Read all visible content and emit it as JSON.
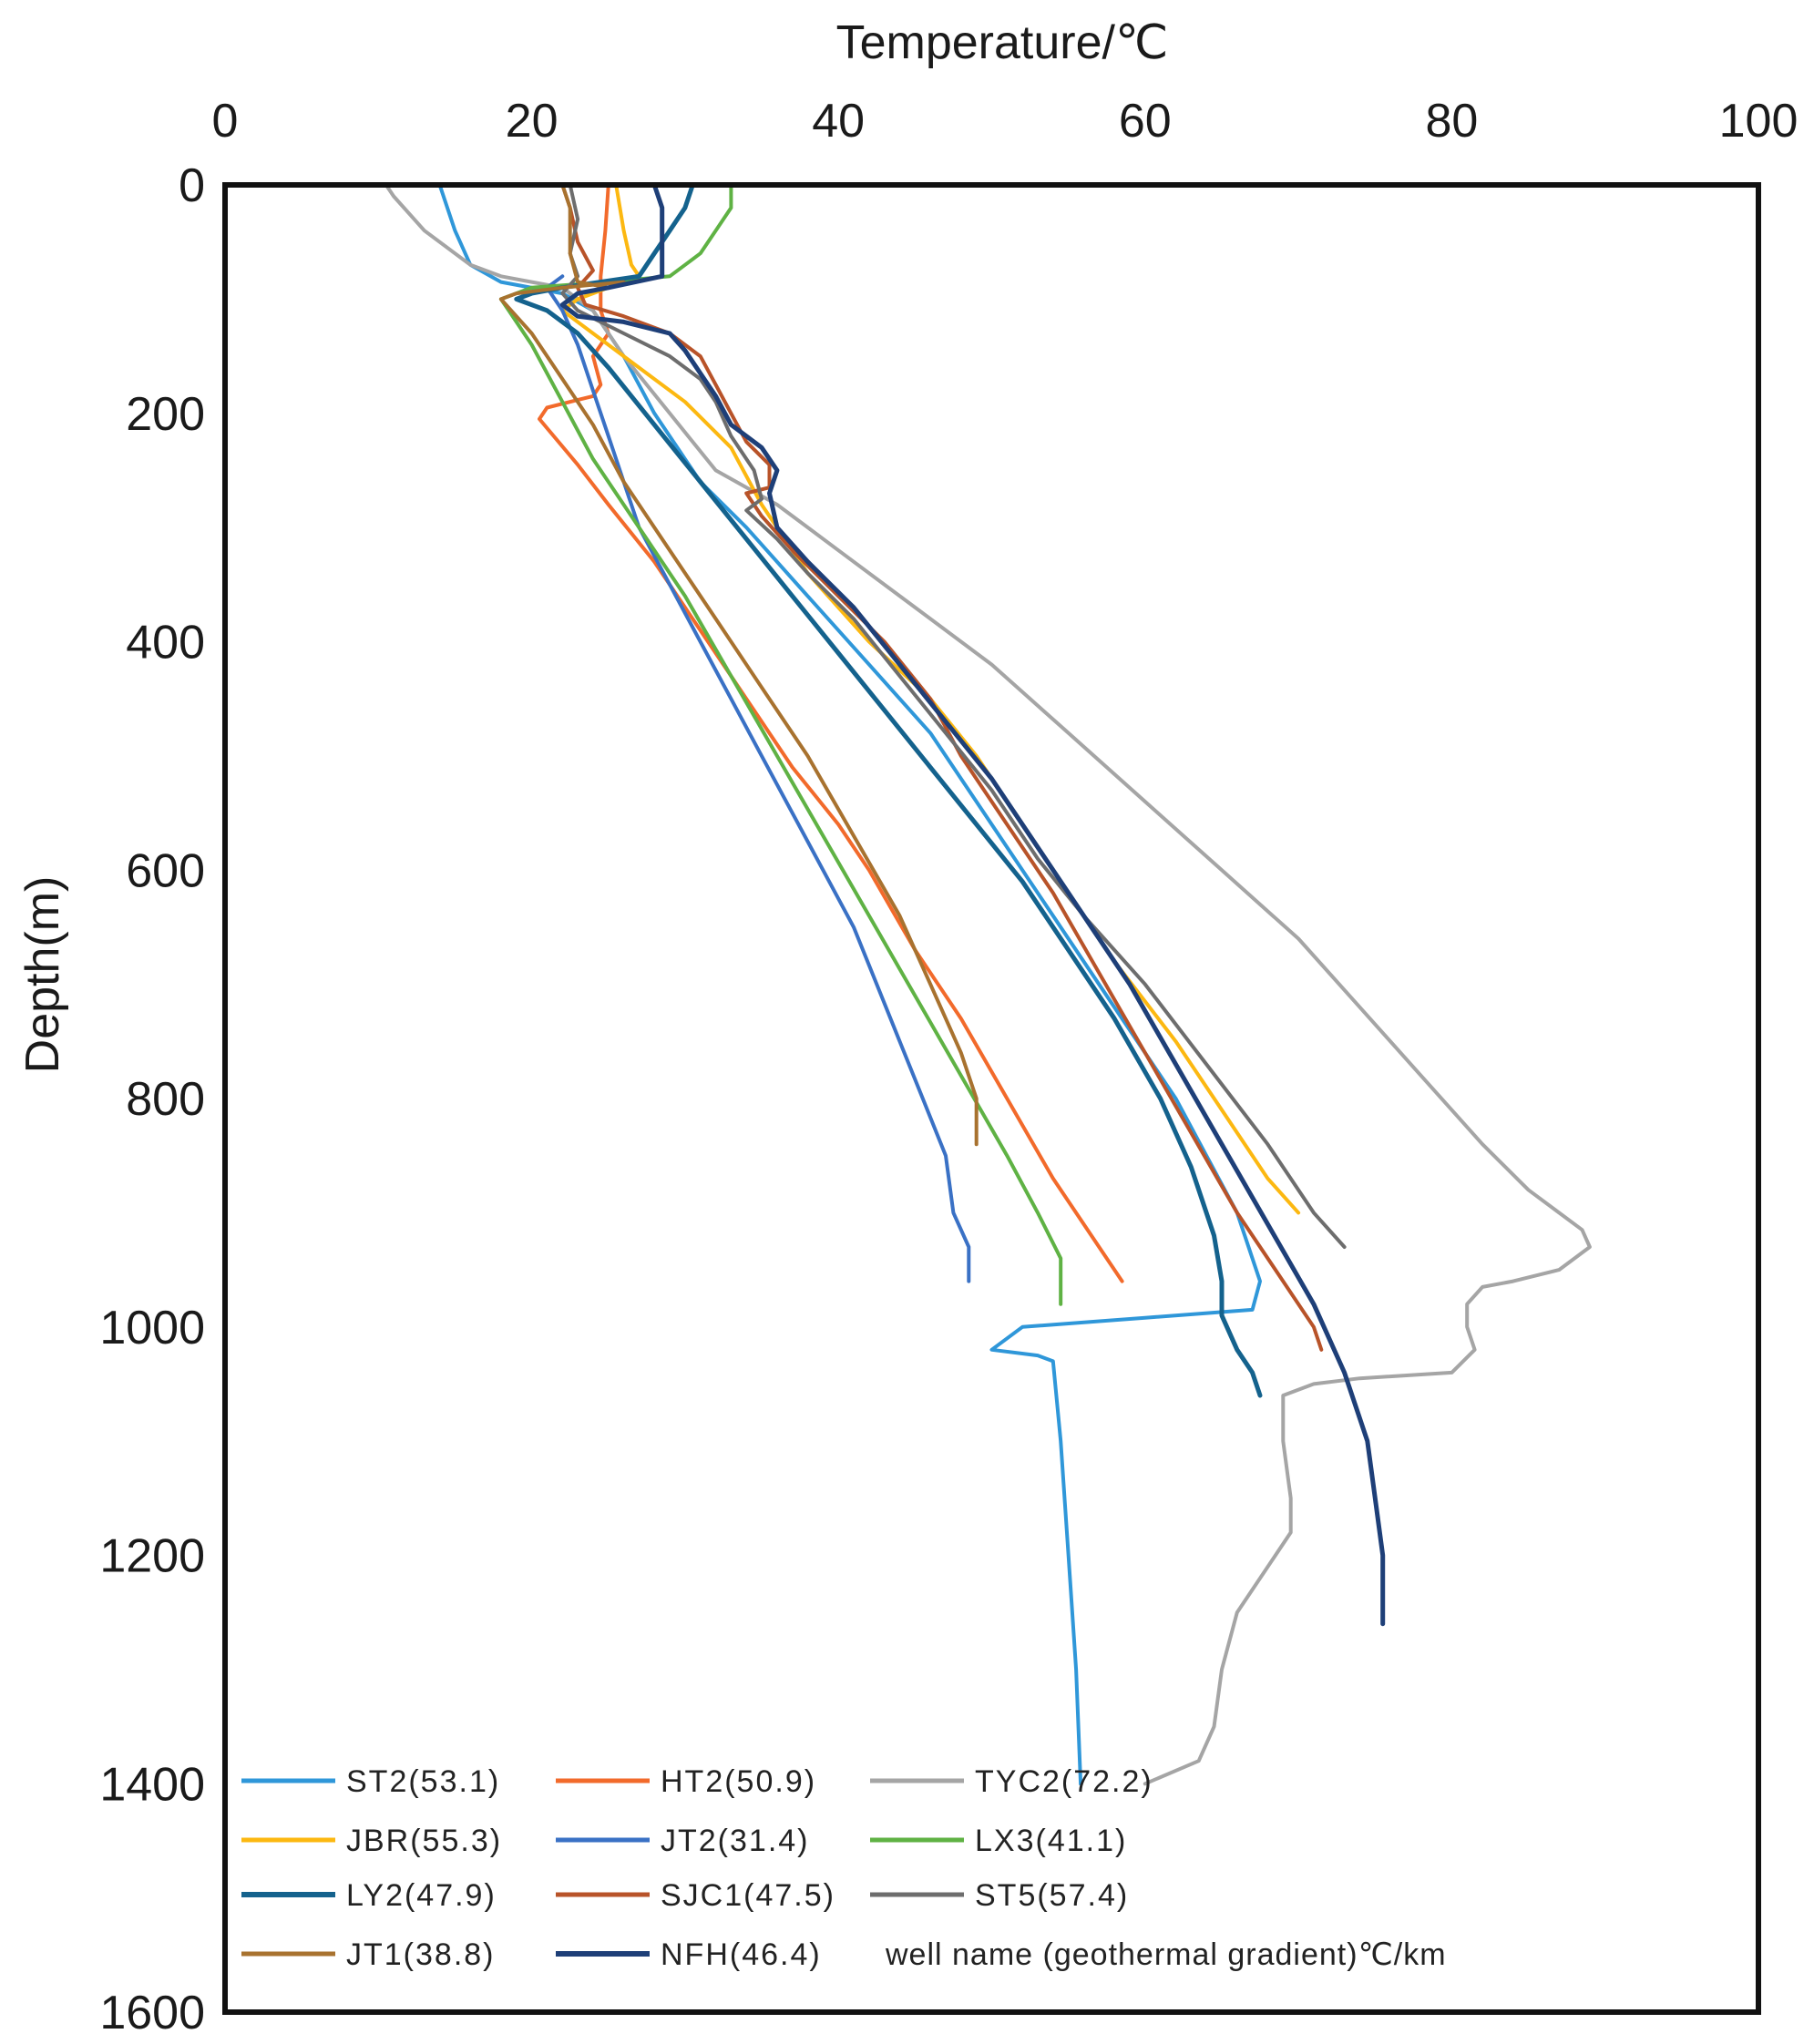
{
  "chart_data": {
    "type": "line",
    "title": "",
    "xlabel": "Temperature/℃",
    "ylabel": "Depth(m)",
    "xlim": [
      0,
      100
    ],
    "ylim": [
      0,
      1600
    ],
    "y_inverted": true,
    "x_axis_position": "top",
    "x_ticks": [
      "0",
      "20",
      "40",
      "60",
      "80",
      "100"
    ],
    "y_ticks": [
      "0",
      "200",
      "400",
      "600",
      "800",
      "1000",
      "1200",
      "1400",
      "1600"
    ],
    "legend_note": "well name (geothermal gradient)℃/km",
    "legend_position": "bottom-left",
    "series": [
      {
        "name": "ST2(53.1)",
        "color": "#2f97d9",
        "points": [
          [
            14,
            0
          ],
          [
            15,
            40
          ],
          [
            16,
            70
          ],
          [
            18,
            85
          ],
          [
            22,
            95
          ],
          [
            24,
            110
          ],
          [
            26,
            150
          ],
          [
            28,
            200
          ],
          [
            31,
            260
          ],
          [
            34,
            300
          ],
          [
            38,
            360
          ],
          [
            42,
            420
          ],
          [
            46,
            480
          ],
          [
            50,
            560
          ],
          [
            54,
            640
          ],
          [
            58,
            720
          ],
          [
            62,
            800
          ],
          [
            64,
            850
          ],
          [
            66,
            900
          ],
          [
            67.5,
            960
          ],
          [
            67,
            985
          ],
          [
            60,
            992
          ],
          [
            52,
            1000
          ],
          [
            50,
            1020
          ],
          [
            53,
            1025
          ],
          [
            54,
            1030
          ],
          [
            54.5,
            1100
          ],
          [
            55,
            1200
          ],
          [
            55.5,
            1300
          ],
          [
            55.8,
            1400
          ]
        ]
      },
      {
        "name": "HT2(50.9)",
        "color": "#f26a2b",
        "points": [
          [
            25,
            0
          ],
          [
            24.8,
            40
          ],
          [
            24.5,
            80
          ],
          [
            24.5,
            110
          ],
          [
            25,
            130
          ],
          [
            24,
            150
          ],
          [
            24.5,
            175
          ],
          [
            24,
            185
          ],
          [
            21,
            195
          ],
          [
            20.5,
            205
          ],
          [
            23,
            245
          ],
          [
            25,
            280
          ],
          [
            28,
            330
          ],
          [
            31,
            390
          ],
          [
            34,
            450
          ],
          [
            37,
            510
          ],
          [
            40,
            560
          ],
          [
            42,
            600
          ],
          [
            45,
            670
          ],
          [
            48,
            730
          ],
          [
            51,
            800
          ],
          [
            54,
            870
          ],
          [
            57,
            930
          ],
          [
            58.5,
            960
          ]
        ]
      },
      {
        "name": "TYC2(72.2)",
        "color": "#a5a5a5",
        "points": [
          [
            10.5,
            0
          ],
          [
            11,
            10
          ],
          [
            13,
            40
          ],
          [
            16,
            70
          ],
          [
            18,
            80
          ],
          [
            20,
            85
          ],
          [
            22,
            90
          ],
          [
            24,
            110
          ],
          [
            26,
            150
          ],
          [
            29,
            200
          ],
          [
            32,
            250
          ],
          [
            36,
            280
          ],
          [
            40,
            320
          ],
          [
            45,
            370
          ],
          [
            50,
            420
          ],
          [
            55,
            480
          ],
          [
            60,
            540
          ],
          [
            65,
            600
          ],
          [
            70,
            660
          ],
          [
            74,
            720
          ],
          [
            78,
            780
          ],
          [
            82,
            840
          ],
          [
            85,
            880
          ],
          [
            87,
            900
          ],
          [
            88.5,
            915
          ],
          [
            89,
            930
          ],
          [
            87,
            950
          ],
          [
            84,
            960
          ],
          [
            82,
            965
          ],
          [
            81,
            980
          ],
          [
            81,
            1000
          ],
          [
            81.5,
            1020
          ],
          [
            80,
            1040
          ],
          [
            74,
            1045
          ],
          [
            71,
            1050
          ],
          [
            69,
            1060
          ],
          [
            69,
            1080
          ],
          [
            69,
            1100
          ],
          [
            69.5,
            1150
          ],
          [
            69.5,
            1180
          ],
          [
            68.5,
            1200
          ],
          [
            66,
            1250
          ],
          [
            65,
            1300
          ],
          [
            64.5,
            1350
          ],
          [
            63.5,
            1380
          ],
          [
            60,
            1400
          ]
        ]
      },
      {
        "name": "JBR(55.3)",
        "color": "#fcb811",
        "points": [
          [
            25.5,
            0
          ],
          [
            26,
            40
          ],
          [
            26.5,
            70
          ],
          [
            27,
            80
          ],
          [
            25,
            90
          ],
          [
            23,
            100
          ],
          [
            22,
            110
          ],
          [
            24,
            130
          ],
          [
            27,
            160
          ],
          [
            30,
            190
          ],
          [
            33,
            230
          ],
          [
            35,
            280
          ],
          [
            38,
            340
          ],
          [
            42,
            400
          ],
          [
            46,
            450
          ],
          [
            49,
            500
          ],
          [
            52,
            560
          ],
          [
            55,
            620
          ],
          [
            58,
            680
          ],
          [
            62,
            750
          ],
          [
            65,
            810
          ],
          [
            68,
            870
          ],
          [
            70,
            900
          ]
        ]
      },
      {
        "name": "JT2(31.4)",
        "color": "#3a71c5",
        "points": [
          [
            22,
            80
          ],
          [
            21,
            90
          ],
          [
            22,
            110
          ],
          [
            23,
            140
          ],
          [
            24,
            180
          ],
          [
            25,
            220
          ],
          [
            26,
            260
          ],
          [
            27,
            300
          ],
          [
            29,
            350
          ],
          [
            31,
            400
          ],
          [
            33,
            450
          ],
          [
            35,
            500
          ],
          [
            37,
            550
          ],
          [
            39,
            600
          ],
          [
            41,
            650
          ],
          [
            42.5,
            700
          ],
          [
            44,
            750
          ],
          [
            45.5,
            800
          ],
          [
            47,
            850
          ],
          [
            47.5,
            900
          ],
          [
            48.5,
            930
          ],
          [
            48.5,
            960
          ]
        ]
      },
      {
        "name": "LX3(41.1)",
        "color": "#5fb244",
        "points": [
          [
            33,
            0
          ],
          [
            33,
            20
          ],
          [
            32,
            40
          ],
          [
            31,
            60
          ],
          [
            30,
            70
          ],
          [
            29,
            80
          ],
          [
            25,
            85
          ],
          [
            20,
            90
          ],
          [
            18,
            100
          ],
          [
            18.5,
            110
          ],
          [
            20,
            140
          ],
          [
            22,
            190
          ],
          [
            24,
            240
          ],
          [
            27,
            300
          ],
          [
            30,
            360
          ],
          [
            33,
            430
          ],
          [
            36,
            500
          ],
          [
            39,
            570
          ],
          [
            42,
            640
          ],
          [
            45,
            710
          ],
          [
            48,
            780
          ],
          [
            51,
            850
          ],
          [
            53,
            900
          ],
          [
            54.5,
            940
          ],
          [
            54.5,
            980
          ]
        ]
      },
      {
        "name": "LY2(47.9)",
        "color": "#14628d",
        "points": [
          [
            30.5,
            0
          ],
          [
            30,
            20
          ],
          [
            29,
            40
          ],
          [
            28,
            60
          ],
          [
            27,
            80
          ],
          [
            22,
            90
          ],
          [
            20,
            95
          ],
          [
            19,
            100
          ],
          [
            21,
            110
          ],
          [
            23,
            130
          ],
          [
            25,
            160
          ],
          [
            28,
            210
          ],
          [
            31,
            260
          ],
          [
            34,
            310
          ],
          [
            37,
            360
          ],
          [
            40,
            410
          ],
          [
            43,
            460
          ],
          [
            46,
            510
          ],
          [
            49,
            560
          ],
          [
            52,
            610
          ],
          [
            55,
            670
          ],
          [
            58,
            730
          ],
          [
            61,
            800
          ],
          [
            63,
            860
          ],
          [
            64.5,
            920
          ],
          [
            65,
            960
          ],
          [
            65,
            990
          ],
          [
            66,
            1020
          ],
          [
            67,
            1040
          ],
          [
            67.5,
            1060
          ]
        ]
      },
      {
        "name": "SJC1(47.5)",
        "color": "#b85329",
        "points": [
          [
            22,
            0
          ],
          [
            22.5,
            20
          ],
          [
            23,
            50
          ],
          [
            24,
            75
          ],
          [
            23,
            90
          ],
          [
            23.5,
            105
          ],
          [
            26,
            115
          ],
          [
            29,
            130
          ],
          [
            31,
            150
          ],
          [
            32,
            175
          ],
          [
            33,
            200
          ],
          [
            34,
            225
          ],
          [
            35.5,
            245
          ],
          [
            35.5,
            265
          ],
          [
            34,
            270
          ],
          [
            35,
            290
          ],
          [
            37,
            320
          ],
          [
            40,
            360
          ],
          [
            43,
            400
          ],
          [
            46,
            450
          ],
          [
            48,
            500
          ],
          [
            51,
            560
          ],
          [
            54,
            620
          ],
          [
            57,
            690
          ],
          [
            60,
            760
          ],
          [
            63,
            830
          ],
          [
            66,
            900
          ],
          [
            69,
            960
          ],
          [
            71,
            1000
          ],
          [
            71.5,
            1020
          ]
        ]
      },
      {
        "name": "ST5(57.4)",
        "color": "#6d6d6d",
        "points": [
          [
            22.5,
            0
          ],
          [
            23,
            30
          ],
          [
            22.5,
            60
          ],
          [
            23,
            80
          ],
          [
            22,
            95
          ],
          [
            23,
            110
          ],
          [
            26,
            130
          ],
          [
            29,
            150
          ],
          [
            31,
            170
          ],
          [
            32,
            190
          ],
          [
            33,
            220
          ],
          [
            34.5,
            250
          ],
          [
            35,
            275
          ],
          [
            34,
            285
          ],
          [
            36,
            310
          ],
          [
            38,
            340
          ],
          [
            41,
            380
          ],
          [
            44,
            430
          ],
          [
            47,
            480
          ],
          [
            50,
            530
          ],
          [
            53,
            590
          ],
          [
            56,
            640
          ],
          [
            60,
            700
          ],
          [
            64,
            770
          ],
          [
            68,
            840
          ],
          [
            71,
            900
          ],
          [
            73,
            930
          ]
        ]
      },
      {
        "name": "JT1(38.8)",
        "color": "#a8722f",
        "points": [
          [
            22,
            0
          ],
          [
            22.5,
            20
          ],
          [
            22.5,
            40
          ],
          [
            22.5,
            60
          ],
          [
            23,
            85
          ],
          [
            25,
            90
          ],
          [
            26,
            85
          ],
          [
            22,
            90
          ],
          [
            19,
            95
          ],
          [
            18,
            100
          ],
          [
            20,
            130
          ],
          [
            22,
            170
          ],
          [
            24,
            210
          ],
          [
            26,
            260
          ],
          [
            29,
            320
          ],
          [
            32,
            380
          ],
          [
            35,
            440
          ],
          [
            38,
            500
          ],
          [
            41,
            570
          ],
          [
            44,
            640
          ],
          [
            46,
            700
          ],
          [
            48,
            760
          ],
          [
            49,
            800
          ],
          [
            49,
            840
          ]
        ]
      },
      {
        "name": "NFH(46.4)",
        "color": "#1e3f78",
        "points": [
          [
            28,
            0
          ],
          [
            28.5,
            20
          ],
          [
            28.5,
            40
          ],
          [
            28.5,
            60
          ],
          [
            28.5,
            80
          ],
          [
            25,
            90
          ],
          [
            23,
            95
          ],
          [
            22,
            105
          ],
          [
            23,
            115
          ],
          [
            26,
            120
          ],
          [
            29,
            130
          ],
          [
            30,
            145
          ],
          [
            31,
            165
          ],
          [
            32,
            185
          ],
          [
            33,
            210
          ],
          [
            35,
            230
          ],
          [
            36,
            250
          ],
          [
            35.5,
            270
          ],
          [
            36,
            300
          ],
          [
            38,
            330
          ],
          [
            41,
            370
          ],
          [
            44,
            420
          ],
          [
            47,
            470
          ],
          [
            50,
            520
          ],
          [
            53,
            580
          ],
          [
            56,
            640
          ],
          [
            59,
            700
          ],
          [
            62,
            770
          ],
          [
            65,
            840
          ],
          [
            68,
            910
          ],
          [
            71,
            980
          ],
          [
            73,
            1040
          ],
          [
            74.5,
            1100
          ],
          [
            75,
            1150
          ],
          [
            75.5,
            1200
          ],
          [
            75.5,
            1260
          ]
        ]
      }
    ]
  }
}
